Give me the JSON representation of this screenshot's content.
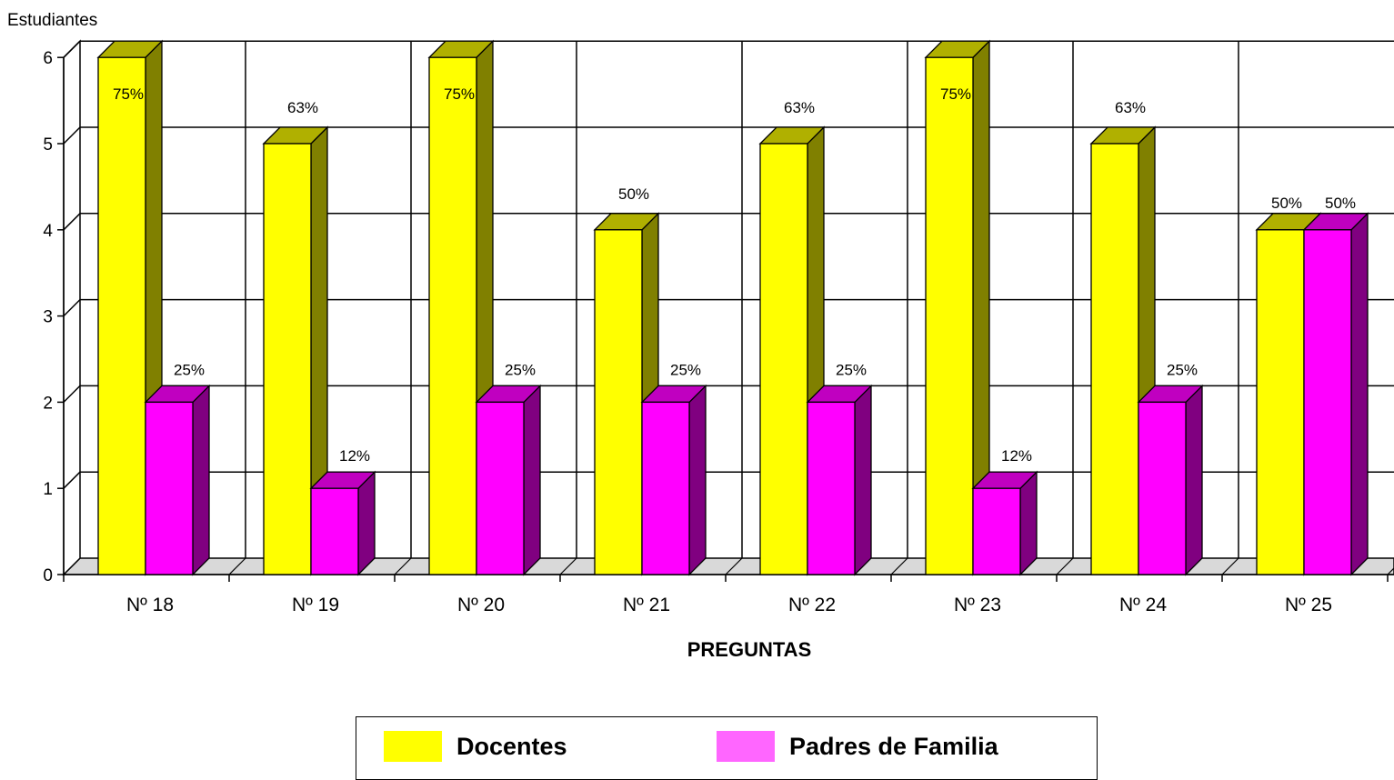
{
  "chart_data": {
    "type": "bar",
    "title": "",
    "xlabel": "PREGUNTAS",
    "ylabel": "Estudiantes",
    "ylim": [
      0,
      6
    ],
    "yticks": [
      "0",
      "1",
      "2",
      "3",
      "4",
      "5",
      "6"
    ],
    "grid": true,
    "legend_position": "bottom",
    "categories": [
      "Nº 18",
      "Nº 19",
      "Nº 20",
      "Nº 21",
      "Nº 22",
      "Nº 23",
      "Nº 24",
      "Nº 25"
    ],
    "series": [
      {
        "name": "Docentes",
        "color": "#ffff00",
        "side_color": "#808000",
        "values": [
          6,
          5,
          6,
          4,
          5,
          6,
          5,
          4
        ],
        "labels": [
          "75%",
          "63%",
          "75%",
          "50%",
          "63%",
          "75%",
          "63%",
          "50%"
        ]
      },
      {
        "name": "Padres de Familia",
        "color": "#ff00ff",
        "side_color": "#800080",
        "values": [
          2,
          1,
          2,
          2,
          2,
          1,
          2,
          4
        ],
        "labels": [
          "25%",
          "12%",
          "25%",
          "25%",
          "25%",
          "12%",
          "25%",
          "50%"
        ]
      }
    ]
  },
  "legend": {
    "items": [
      {
        "label": "Docentes",
        "color": "#ffff00"
      },
      {
        "label": "Padres de Familia",
        "color": "#ff66ff"
      }
    ]
  }
}
